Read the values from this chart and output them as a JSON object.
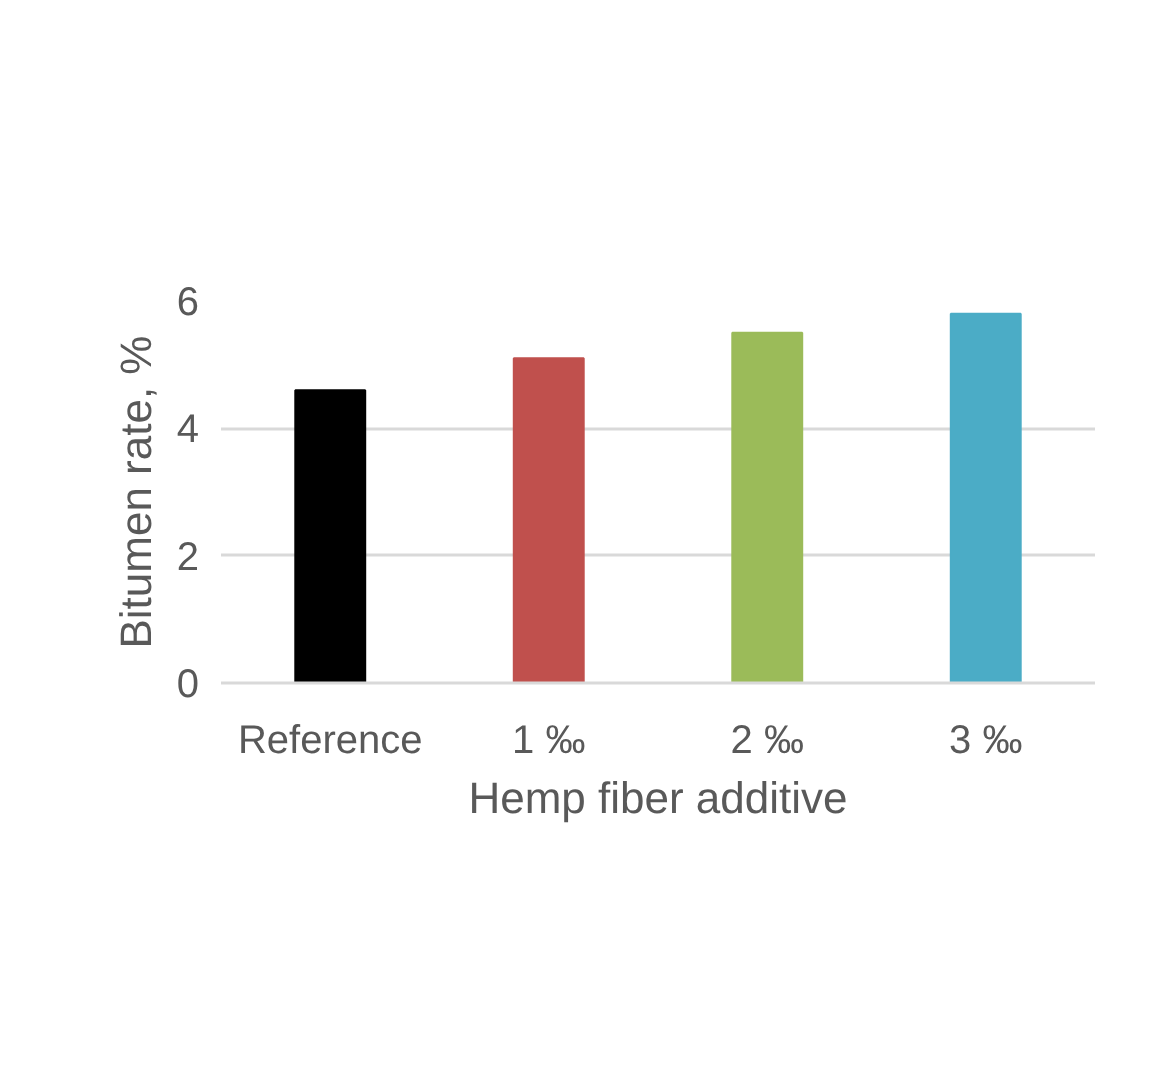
{
  "chart_data": {
    "type": "bar",
    "xlabel": "Hemp fiber additive",
    "ylabel": "Bitumen rate, %",
    "categories": [
      "Reference",
      "1 ‰",
      "2 ‰",
      "3 ‰"
    ],
    "values": [
      4.6,
      5.1,
      5.5,
      5.8
    ],
    "colors": [
      "#000000",
      "#c0504d",
      "#9bbb59",
      "#4bacc6"
    ],
    "ylim": [
      0,
      6
    ],
    "yticks": [
      0,
      2,
      4,
      6
    ],
    "grid": "y"
  }
}
